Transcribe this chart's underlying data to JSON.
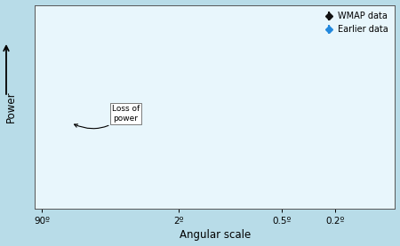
{
  "title": "",
  "xlabel": "Angular scale",
  "ylabel": "Power",
  "background_color": "#b8dce8",
  "plot_bg_color": "#e8f6fc",
  "curve_color": "#cc0000",
  "wmap_color": "#111111",
  "earlier_color": "#2288dd",
  "annotation_text": "Loss of\npower",
  "legend_wmap": "WMAP data",
  "legend_earlier": "Earlier data",
  "xtick_labels": [
    "90º",
    "2º",
    "0.5º",
    "0.2º"
  ],
  "xtick_positions": [
    0.0,
    0.4,
    0.7,
    0.855
  ],
  "figsize": [
    4.5,
    2.77
  ],
  "dpi": 100
}
